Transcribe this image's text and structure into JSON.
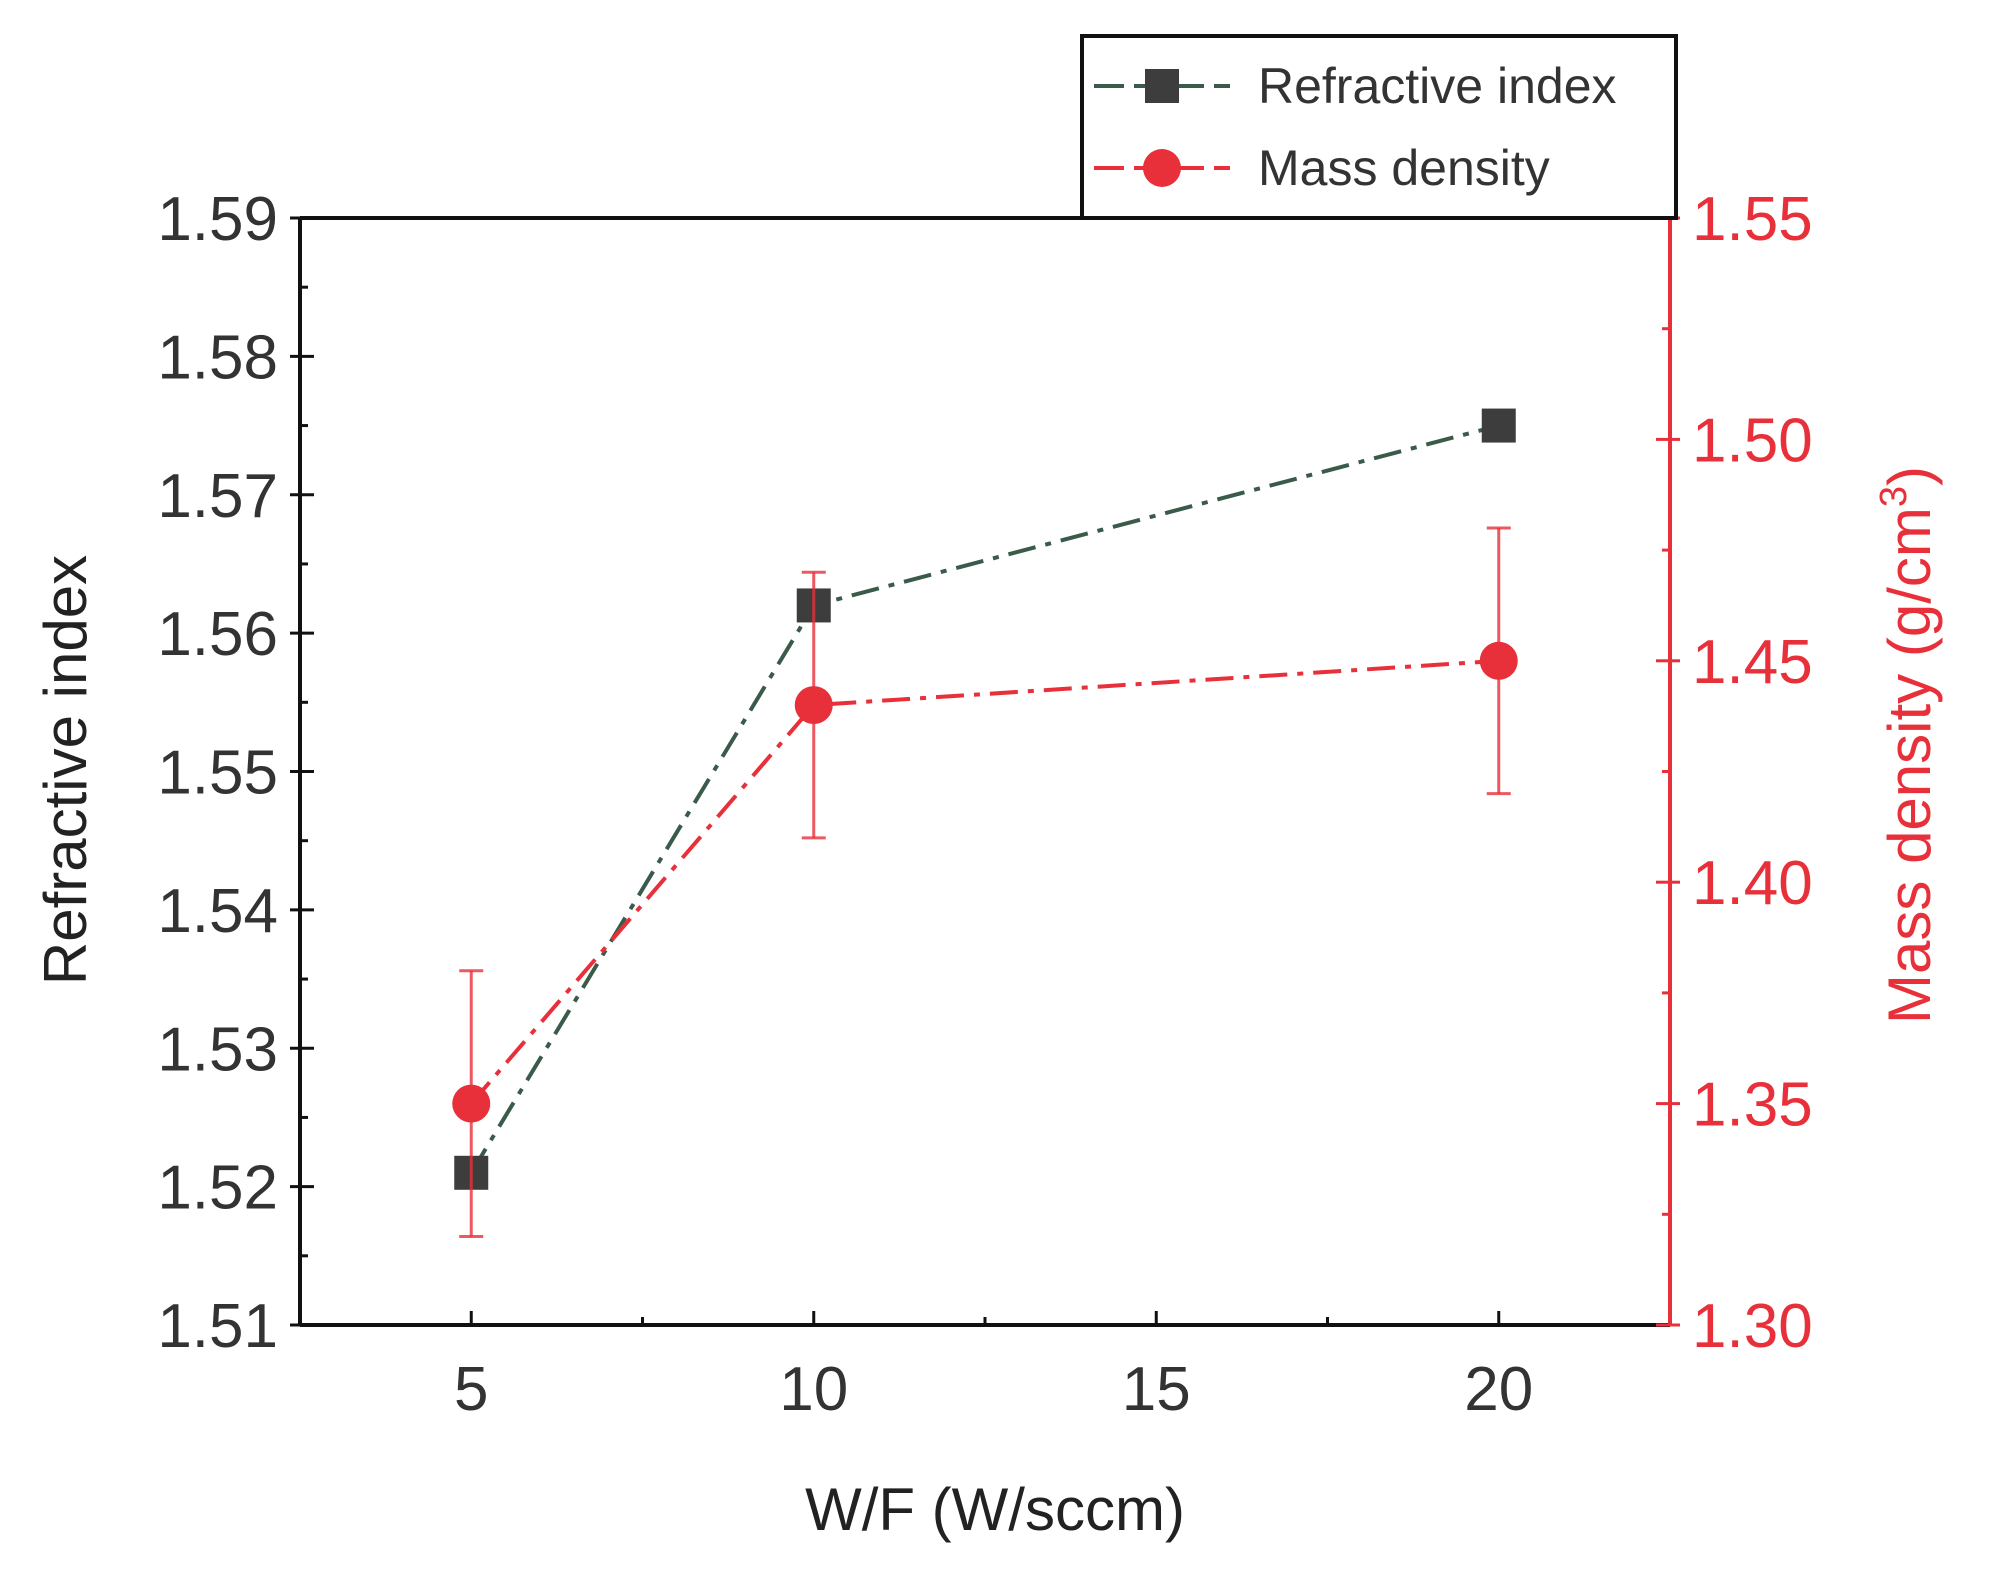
{
  "chart_data": {
    "type": "line",
    "x": [
      5,
      10,
      20
    ],
    "xlabel": "W/F (W/sccm)",
    "xticks": [
      "5",
      "10",
      "15",
      "20"
    ],
    "xlim": [
      2.5,
      22.5
    ],
    "left_axis": {
      "label": "Refractive index",
      "ylim": [
        1.51,
        1.59
      ],
      "ticks": [
        "1.51",
        "1.52",
        "1.53",
        "1.54",
        "1.55",
        "1.56",
        "1.57",
        "1.58",
        "1.59"
      ],
      "color": "#333333"
    },
    "right_axis": {
      "label": "Mass density (g/cm",
      "label_sup": "3",
      "label_close": ")",
      "ylim": [
        1.3,
        1.55
      ],
      "ticks": [
        "1.30",
        "1.35",
        "1.40",
        "1.45",
        "1.50",
        "1.55"
      ],
      "color": "#e8303a"
    },
    "series": [
      {
        "name": "Refractive index",
        "axis": "left",
        "marker": "square",
        "color": "#3d3d3d",
        "line_color": "#3a5a4a",
        "values": [
          1.521,
          1.562,
          1.575
        ]
      },
      {
        "name": "Mass density",
        "axis": "right",
        "marker": "circle",
        "color": "#e8303a",
        "line_color": "#e8303a",
        "values": [
          1.35,
          1.44,
          1.45
        ],
        "error": [
          0.03,
          0.03,
          0.03
        ]
      }
    ],
    "legend_position": "top-right, above plot",
    "grid": false
  }
}
